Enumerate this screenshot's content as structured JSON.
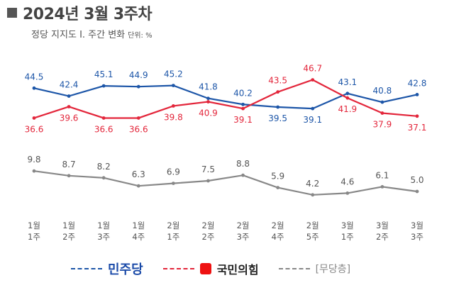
{
  "title": "2024년 3월 3주차",
  "subtitle": "정당 지지도 Ⅰ. 주간 변화",
  "unit": "단위: %",
  "colors": {
    "dem": "#1d56a8",
    "ppp": "#e3263b",
    "none": "#888888"
  },
  "legend": {
    "dem": "민주당",
    "ppp": "국민의힘",
    "none": "[무당층]"
  },
  "chart_data": {
    "type": "line",
    "categories": [
      "1월\n1주",
      "1월\n2주",
      "1월\n3주",
      "1월\n4주",
      "2월\n1주",
      "2월\n2주",
      "2월\n3주",
      "2월\n4주",
      "2월\n5주",
      "3월\n1주",
      "3월\n2주",
      "3월\n3주"
    ],
    "series": [
      {
        "name": "민주당",
        "values": [
          44.5,
          42.4,
          45.1,
          44.9,
          45.2,
          41.8,
          40.2,
          39.5,
          39.1,
          43.1,
          40.8,
          42.8
        ]
      },
      {
        "name": "국민의힘",
        "values": [
          36.6,
          39.6,
          36.6,
          36.6,
          39.8,
          40.9,
          39.1,
          43.5,
          46.7,
          41.9,
          37.9,
          37.1
        ]
      },
      {
        "name": "[무당층]",
        "values": [
          9.8,
          8.7,
          8.2,
          6.3,
          6.9,
          7.5,
          8.8,
          5.9,
          4.2,
          4.6,
          6.1,
          5.0
        ]
      }
    ]
  }
}
